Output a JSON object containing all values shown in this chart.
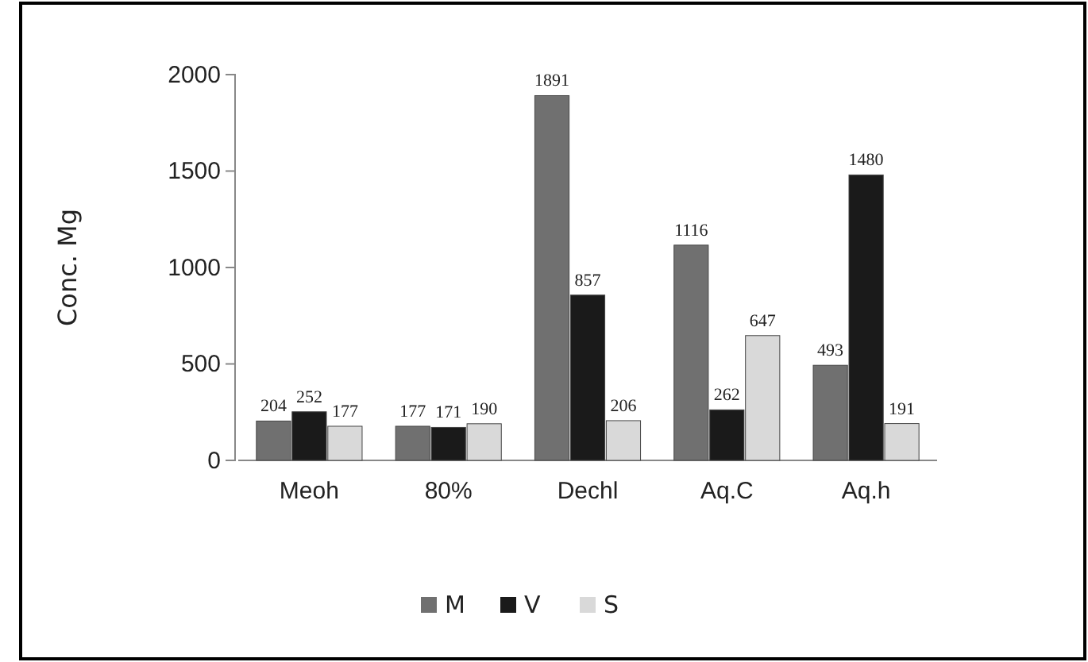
{
  "chart_data": {
    "type": "bar",
    "ylabel": "Conc. Mg",
    "categories": [
      "Meoh",
      "80%",
      "Dechl",
      "Aq.C",
      "Aq.h"
    ],
    "series": [
      {
        "name": "M",
        "color": "#707070",
        "values": [
          204,
          177,
          1891,
          1116,
          493
        ]
      },
      {
        "name": "V",
        "color": "#1a1a1a",
        "values": [
          252,
          171,
          857,
          262,
          1480
        ]
      },
      {
        "name": "S",
        "color": "#d9d9d9",
        "values": [
          177,
          190,
          206,
          647,
          191
        ]
      }
    ],
    "ylim": [
      0,
      2000
    ],
    "yticks": [
      0,
      500,
      1000,
      1500,
      2000
    ],
    "grid": false,
    "legend": "bottom",
    "data_labels": true
  }
}
